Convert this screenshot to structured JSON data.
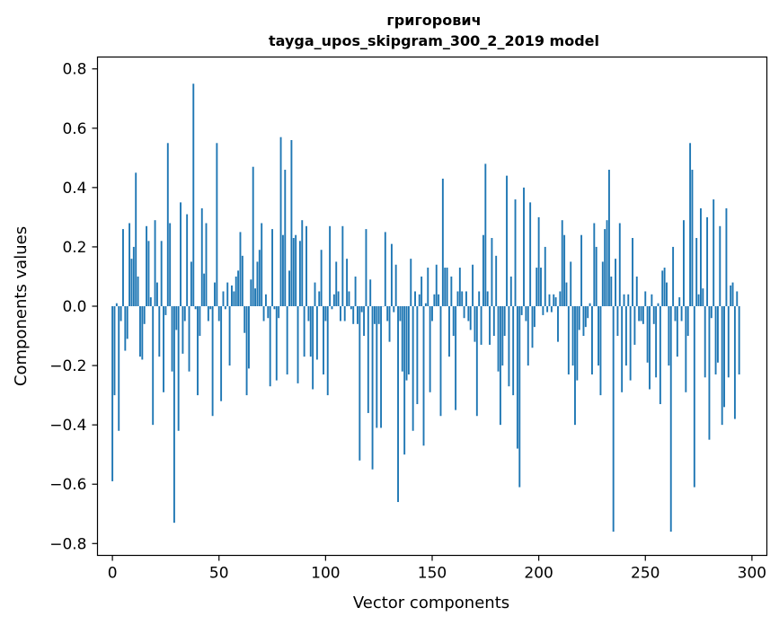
{
  "chart_data": {
    "type": "bar",
    "title": [
      "григорович",
      "tayga_upos_skipgram_300_2_2019 model"
    ],
    "xlabel": "Vector components",
    "ylabel": "Components values",
    "xlim": [
      -7,
      307
    ],
    "ylim": [
      -0.84,
      0.84
    ],
    "xticks": [
      0,
      50,
      100,
      150,
      200,
      250,
      300
    ],
    "yticks": [
      -0.8,
      -0.6,
      -0.4,
      -0.2,
      0.0,
      0.2,
      0.4,
      0.6,
      0.8
    ],
    "bar_color": "#1f77b4",
    "grid": false,
    "legend": "none",
    "x_start": 0,
    "values": [
      -0.59,
      -0.3,
      0.01,
      -0.42,
      -0.05,
      0.26,
      -0.15,
      -0.11,
      0.28,
      0.16,
      0.2,
      0.45,
      0.1,
      -0.17,
      -0.18,
      -0.06,
      0.27,
      0.22,
      0.03,
      -0.4,
      0.29,
      0.08,
      -0.17,
      0.22,
      -0.29,
      -0.03,
      0.55,
      0.28,
      -0.22,
      -0.73,
      -0.08,
      -0.42,
      0.35,
      -0.16,
      -0.05,
      0.31,
      -0.22,
      0.15,
      0.75,
      -0.01,
      -0.3,
      -0.1,
      0.33,
      0.11,
      0.28,
      -0.05,
      -0.01,
      -0.37,
      0.08,
      0.55,
      -0.05,
      -0.32,
      0.05,
      -0.01,
      0.08,
      -0.2,
      0.07,
      0.05,
      0.1,
      0.12,
      0.25,
      0.17,
      -0.09,
      -0.3,
      -0.21,
      0.09,
      0.47,
      0.06,
      0.15,
      0.19,
      0.28,
      -0.05,
      0.04,
      -0.04,
      -0.27,
      0.26,
      -0.01,
      -0.25,
      -0.04,
      0.57,
      0.24,
      0.46,
      -0.23,
      0.12,
      0.56,
      0.23,
      0.24,
      -0.26,
      0.22,
      0.29,
      -0.17,
      0.27,
      -0.05,
      -0.17,
      -0.28,
      0.08,
      -0.18,
      0.05,
      0.19,
      -0.23,
      -0.05,
      -0.3,
      0.27,
      -0.01,
      0.04,
      0.15,
      0.05,
      -0.05,
      0.27,
      -0.05,
      0.16,
      0.05,
      -0.01,
      -0.06,
      0.1,
      -0.06,
      -0.52,
      -0.02,
      -0.1,
      0.26,
      -0.36,
      0.09,
      -0.55,
      -0.06,
      -0.41,
      -0.06,
      -0.41,
      0.0,
      0.25,
      -0.05,
      -0.12,
      0.21,
      -0.02,
      0.14,
      -0.66,
      -0.05,
      -0.22,
      -0.5,
      -0.25,
      -0.23,
      0.16,
      -0.42,
      0.05,
      -0.33,
      0.04,
      0.1,
      -0.47,
      0.01,
      0.13,
      -0.29,
      -0.05,
      0.04,
      0.14,
      0.04,
      -0.37,
      0.43,
      0.13,
      0.13,
      -0.17,
      0.1,
      -0.1,
      -0.35,
      0.05,
      0.13,
      0.05,
      -0.04,
      0.05,
      -0.05,
      -0.08,
      0.14,
      -0.12,
      -0.37,
      0.05,
      -0.13,
      0.24,
      0.48,
      0.05,
      -0.13,
      0.23,
      -0.1,
      0.17,
      -0.22,
      -0.4,
      -0.2,
      -0.1,
      0.44,
      -0.27,
      0.1,
      -0.3,
      0.36,
      -0.48,
      -0.61,
      -0.03,
      0.4,
      -0.05,
      -0.2,
      0.35,
      -0.14,
      -0.07,
      0.13,
      0.3,
      0.13,
      -0.03,
      0.2,
      -0.02,
      0.04,
      -0.02,
      0.04,
      0.03,
      -0.12,
      0.05,
      0.29,
      0.24,
      0.08,
      -0.23,
      0.15,
      -0.2,
      -0.4,
      -0.25,
      -0.08,
      0.24,
      -0.1,
      -0.07,
      -0.04,
      0.01,
      -0.23,
      0.28,
      0.2,
      -0.2,
      -0.3,
      0.15,
      0.26,
      0.29,
      0.46,
      0.1,
      -0.76,
      0.16,
      -0.1,
      0.28,
      -0.29,
      0.04,
      -0.2,
      0.04,
      -0.25,
      0.23,
      -0.13,
      0.1,
      -0.05,
      -0.05,
      -0.06,
      0.05,
      -0.19,
      -0.28,
      0.04,
      -0.06,
      -0.24,
      0.01,
      -0.33,
      0.12,
      0.13,
      0.08,
      -0.2,
      -0.76,
      0.2,
      -0.05,
      -0.17,
      0.03,
      -0.05,
      0.29,
      -0.29,
      -0.1,
      0.55,
      0.46,
      -0.61,
      0.23,
      0.04,
      0.33,
      0.06,
      -0.24,
      0.3,
      -0.45,
      -0.04,
      0.36,
      -0.23,
      -0.19,
      0.27,
      -0.4,
      -0.34,
      0.33,
      -0.24,
      0.07,
      0.08,
      -0.38,
      0.05,
      -0.23
    ]
  }
}
